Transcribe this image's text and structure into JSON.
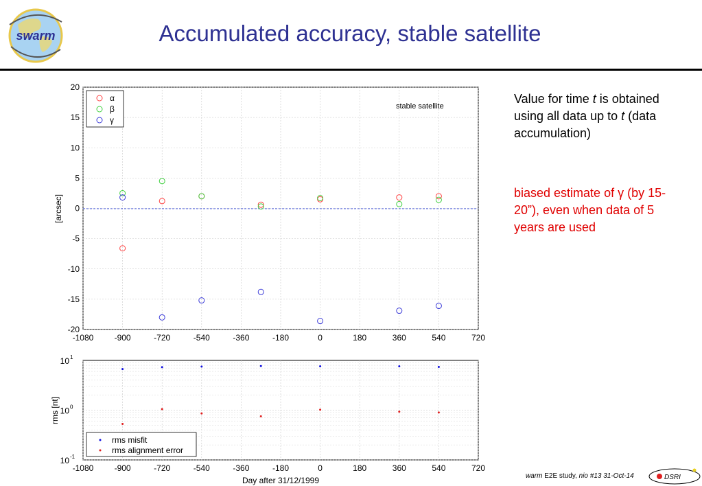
{
  "header": {
    "title": "Accumulated accuracy, stable satellite",
    "logo_text": "swarm"
  },
  "notes": {
    "note1_a": "Value for time ",
    "note1_t1": "t",
    "note1_b": " is obtained using all data up to ",
    "note1_t2": "t",
    "note1_c": " (data accumulation)",
    "note2": "biased estimate of γ (by 15-20”), even when data of 5 years are used"
  },
  "footer": {
    "text_italic1": "warm",
    "text_mid": " E2E study, ",
    "text_italic2": "nio #13 31-Oct-14",
    "badge": "DSRI"
  },
  "colors": {
    "alpha": "#ff4040",
    "beta": "#40d040",
    "gamma": "#3a3ad8",
    "rms_misfit": "#1010e0",
    "rms_align": "#e02020"
  },
  "chart_data": [
    {
      "type": "scatter",
      "title": "",
      "annotation": "stable satellite",
      "xlabel": "",
      "ylabel": "[arcsec]",
      "xlim": [
        -1080,
        720
      ],
      "ylim": [
        -20,
        20
      ],
      "xticks": [
        "-1080",
        "-900",
        "-720",
        "-540",
        "-360",
        "-180",
        "0",
        "180",
        "360",
        "540",
        "720"
      ],
      "yticks": [
        "20",
        "15",
        "10",
        "5",
        "0",
        "-5",
        "-10",
        "-15",
        "-20"
      ],
      "grid": true,
      "legend_position": "top-left",
      "x": [
        -900,
        -720,
        -540,
        -270,
        0,
        360,
        540
      ],
      "series": [
        {
          "name": "α",
          "values": [
            -6.6,
            1.2,
            2.0,
            0.6,
            1.5,
            1.8,
            2.0
          ]
        },
        {
          "name": "β",
          "values": [
            2.5,
            4.5,
            2.0,
            0.3,
            1.7,
            0.7,
            1.4
          ]
        },
        {
          "name": "γ",
          "values": [
            1.8,
            -18.0,
            -15.2,
            -13.8,
            -18.6,
            -16.9,
            -16.1
          ]
        }
      ]
    },
    {
      "type": "scatter",
      "title": "",
      "xlabel": "Day after 31/12/1999",
      "ylabel": "rms [nt]",
      "xlim": [
        -1080,
        720
      ],
      "ylim": [
        0.1,
        10
      ],
      "yscale": "log",
      "xticks": [
        "-1080",
        "-900",
        "-720",
        "-540",
        "-360",
        "-180",
        "0",
        "180",
        "360",
        "540",
        "720"
      ],
      "grid": true,
      "legend_position": "bottom-left",
      "x": [
        -900,
        -720,
        -540,
        -270,
        0,
        360,
        540
      ],
      "series": [
        {
          "name": "rms misfit",
          "values": [
            6.7,
            7.3,
            7.5,
            7.7,
            7.6,
            7.6,
            7.4
          ]
        },
        {
          "name": "rms alignment error",
          "values": [
            0.53,
            1.05,
            0.86,
            0.75,
            1.02,
            0.93,
            0.9
          ]
        }
      ]
    }
  ]
}
